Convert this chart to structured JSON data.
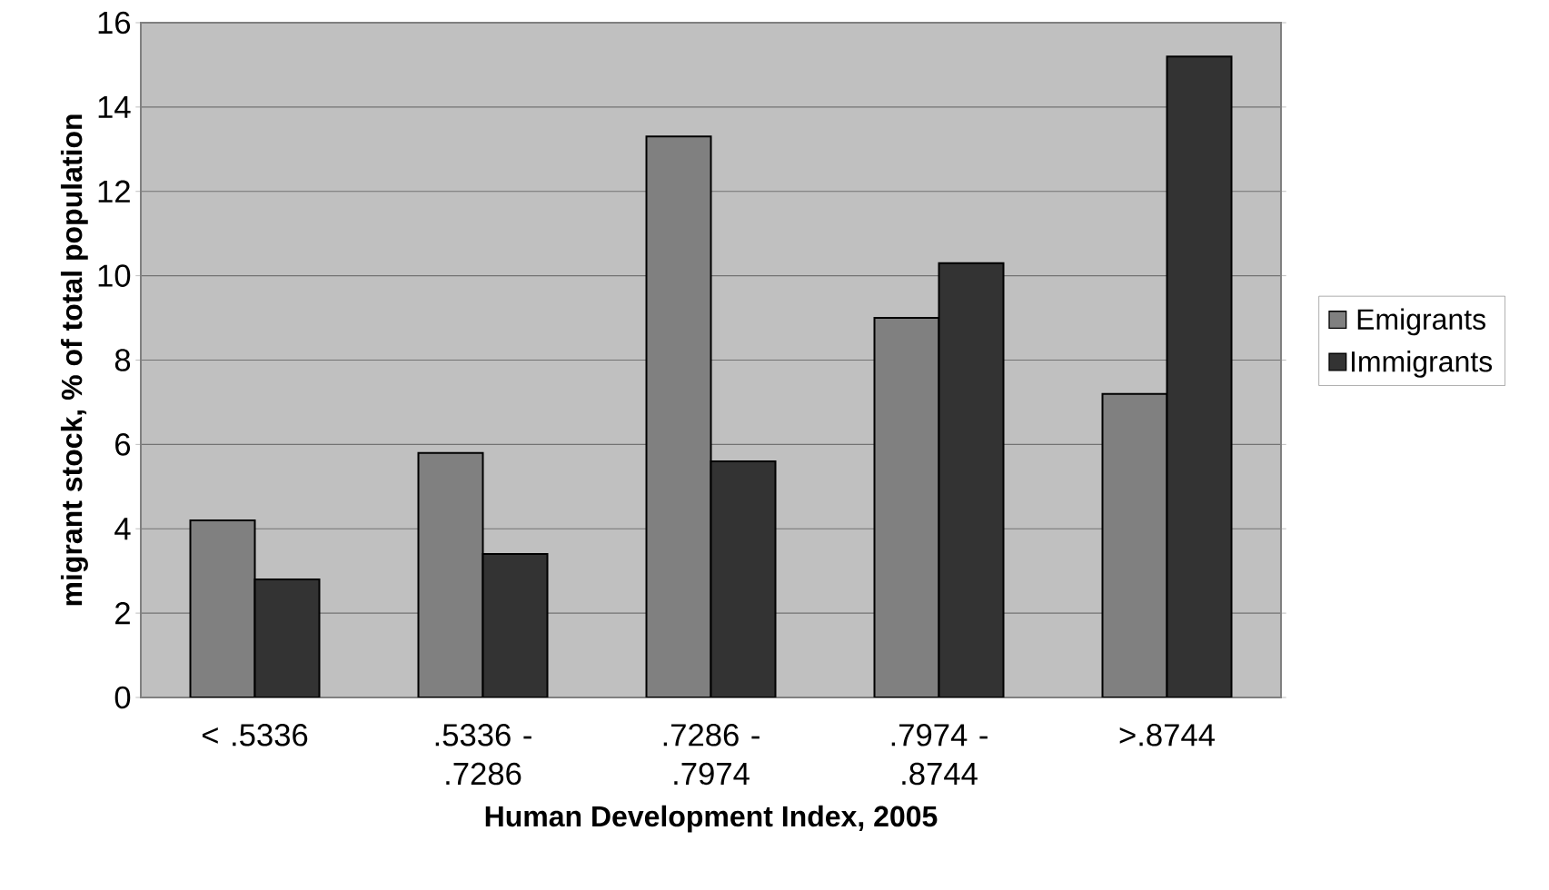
{
  "chart_data": {
    "type": "bar",
    "xlabel": "Human Development Index, 2005",
    "ylabel": "migrant stock, % of total population",
    "categories": [
      "< .5336",
      ".5336 - .7286",
      ".7286 - .7974",
      ".7974 - .8744",
      ">.8744"
    ],
    "series": [
      {
        "name": "Emigrants",
        "color": "#808080",
        "values": [
          4.2,
          5.8,
          13.3,
          9.0,
          7.2
        ]
      },
      {
        "name": "Immigrants",
        "color": "#333333",
        "values": [
          2.8,
          3.4,
          5.6,
          10.3,
          15.2
        ]
      }
    ],
    "ylim": [
      0,
      16
    ],
    "yticks": [
      0,
      2,
      4,
      6,
      8,
      10,
      12,
      14,
      16
    ],
    "grid": "y",
    "legend": "right"
  }
}
